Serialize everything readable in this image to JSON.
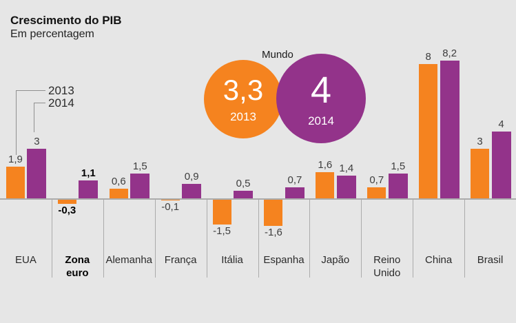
{
  "header": {
    "title": "Crescimento do PIB",
    "subtitle": "Em percentagem"
  },
  "legend": {
    "items": [
      {
        "label": "2013"
      },
      {
        "label": "2014"
      }
    ]
  },
  "mundo": {
    "label": "Mundo",
    "circles": [
      {
        "value": "3,3",
        "year": "2013"
      },
      {
        "value": "4",
        "year": "2014"
      }
    ]
  },
  "colors": {
    "orange_2013": "#F5831F",
    "purple_2014": "#93338A",
    "background": "#E6E6E6",
    "axis": "#ABABAB",
    "callout_line": "#8F8F8F",
    "value_text": "#3D3D3D",
    "category_text": "#2B2B2B"
  },
  "chart_data": {
    "type": "bar",
    "title": "Crescimento do PIB",
    "subtitle": "Em percentagem",
    "unit": "percent",
    "grid": false,
    "legend_position": "top-left-callouts",
    "ylim": [
      -2,
      9
    ],
    "categories": [
      "EUA",
      "Zona euro",
      "Alemanha",
      "França",
      "Itália",
      "Espanha",
      "Japão",
      "Reino Unido",
      "China",
      "Brasil"
    ],
    "category_display": [
      "EUA",
      "Zona\neuro",
      "Alemanha",
      "França",
      "Itália",
      "Espanha",
      "Japão",
      "Reino\nUnido",
      "China",
      "Brasil"
    ],
    "bold_category_indexes": [
      1
    ],
    "series": [
      {
        "name": "2013",
        "color": "#F5831F",
        "values": [
          1.9,
          -0.3,
          0.6,
          -0.1,
          -1.5,
          -1.6,
          1.6,
          0.7,
          8,
          3
        ],
        "labels": [
          "1,9",
          "-0,3",
          "0,6",
          "-0,1",
          "-1,5",
          "-1,6",
          "1,6",
          "0,7",
          "8",
          "3"
        ]
      },
      {
        "name": "2014",
        "color": "#93338A",
        "values": [
          3,
          1.1,
          1.5,
          0.9,
          0.5,
          0.7,
          1.4,
          1.5,
          8.2,
          4
        ],
        "labels": [
          "3",
          "1,1",
          "1,5",
          "0,9",
          "0,5",
          "0,7",
          "1,4",
          "1,5",
          "8,2",
          "4"
        ]
      }
    ],
    "world": {
      "label": "Mundo",
      "value_2013": 3.3,
      "value_2014": 4
    }
  }
}
